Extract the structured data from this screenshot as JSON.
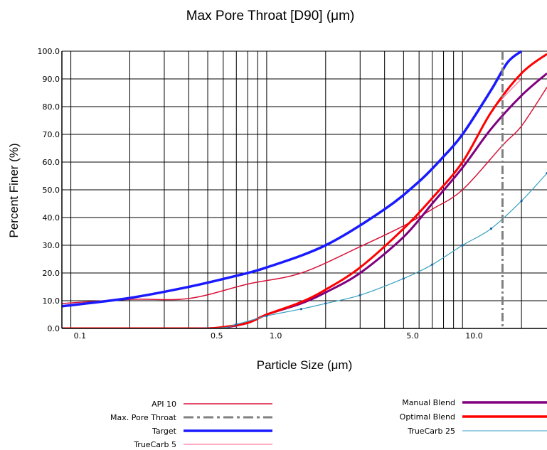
{
  "chart_data": {
    "type": "line",
    "title": "Max Pore Throat [D90] (μm)",
    "xlabel": "Particle Size (μm)",
    "ylabel": "Percent Finer (%)",
    "xscale": "log",
    "xlim": [
      0.09,
      27
    ],
    "ylim": [
      0,
      100
    ],
    "grid": true,
    "x_tick_labels": [
      {
        "value": 0.1,
        "label": "0.1"
      },
      {
        "value": 0.5,
        "label": "0.5"
      },
      {
        "value": 1.0,
        "label": "1.0"
      },
      {
        "value": 5.0,
        "label": "5.0"
      },
      {
        "value": 10.0,
        "label": "10.0"
      }
    ],
    "y_tick_labels": [
      "0.0",
      "10.0",
      "20.0",
      "30.0",
      "40.0",
      "50.0",
      "60.0",
      "70.0",
      "80.0",
      "90.0",
      "100.0"
    ],
    "x_gridlines": [
      0.1,
      0.2,
      0.3,
      0.4,
      0.5,
      0.6,
      0.7,
      0.8,
      0.9,
      1,
      2,
      3,
      4,
      5,
      6,
      7,
      8,
      9,
      10,
      20
    ],
    "reference_line": {
      "name": "Max. Pore Throat",
      "x": 16,
      "color": "#808080",
      "style": "dash-dot"
    },
    "legend_position": "bottom",
    "series": [
      {
        "name": "API 10",
        "color": "#d8143a",
        "width": 1.5,
        "dotted": false,
        "x": [
          0.09,
          0.2,
          0.4,
          0.8,
          1.5,
          3,
          5,
          7,
          10,
          16,
          20,
          27
        ],
        "y": [
          9,
          10.5,
          10.8,
          16,
          20,
          29.5,
          37,
          43,
          50,
          66,
          73,
          87
        ]
      },
      {
        "name": "Target",
        "color": "#1a1aff",
        "width": 3.5,
        "dotted": false,
        "x": [
          0.09,
          0.2,
          0.4,
          0.7,
          1,
          2,
          4,
          6,
          8,
          10,
          14,
          17,
          20
        ],
        "y": [
          8,
          11,
          15,
          19,
          22,
          30,
          43,
          53,
          62,
          70,
          86,
          96,
          100
        ]
      },
      {
        "name": "TrueCarb 5",
        "color": "#ff5c8a",
        "width": 1,
        "dotted": false,
        "x": [
          0.09,
          0.4,
          0.5,
          0.6,
          0.8,
          1,
          1.5,
          2,
          3,
          5,
          7,
          10,
          14,
          20
        ],
        "y": [
          0,
          0,
          0,
          0.5,
          2,
          5,
          9.5,
          14,
          22,
          36,
          47,
          60,
          78,
          90
        ]
      },
      {
        "name": "Manual Blend",
        "color": "#800080",
        "width": 3,
        "dotted": false,
        "x": [
          0.09,
          0.4,
          0.5,
          0.6,
          0.8,
          1,
          1.5,
          2,
          3,
          5,
          7,
          10,
          14,
          20,
          27
        ],
        "y": [
          0,
          0,
          0,
          0.3,
          2,
          5,
          9,
          13,
          20,
          33,
          45,
          58,
          72,
          84,
          92
        ]
      },
      {
        "name": "Optimal Blend",
        "color": "#ff0000",
        "width": 3,
        "dotted": false,
        "x": [
          0.09,
          0.4,
          0.5,
          0.6,
          0.8,
          1,
          1.5,
          2,
          3,
          5,
          7,
          10,
          14,
          20,
          27
        ],
        "y": [
          0,
          0,
          0,
          0.5,
          2,
          5,
          9.5,
          14,
          22,
          36,
          47,
          60,
          78,
          92,
          99
        ]
      },
      {
        "name": "TrueCarb 25",
        "color": "#3aa0c0",
        "width": 1.2,
        "dotted": true,
        "x": [
          0.09,
          0.5,
          0.7,
          1,
          1.5,
          2,
          3,
          5,
          7,
          10,
          14,
          20,
          27
        ],
        "y": [
          0,
          0,
          1.5,
          4.5,
          7,
          9,
          12,
          18,
          23,
          30,
          36,
          46,
          56
        ]
      }
    ]
  },
  "legend": {
    "items": [
      {
        "label": "API 10",
        "color": "#d8143a",
        "style": "solid",
        "width": 1.5
      },
      {
        "label": "Max. Pore Throat",
        "color": "#808080",
        "style": "dashdot",
        "width": 3
      },
      {
        "label": "Target",
        "color": "#1a1aff",
        "style": "solid",
        "width": 3.5
      },
      {
        "label": "TrueCarb 5",
        "color": "#ff5c8a",
        "style": "solid",
        "width": 1
      },
      {
        "label": "Manual Blend",
        "color": "#800080",
        "style": "solid",
        "width": 3.5
      },
      {
        "label": "Optimal Blend",
        "color": "#ff0000",
        "style": "solid",
        "width": 3.5
      },
      {
        "label": "TrueCarb 25",
        "color": "#3aa0c0",
        "style": "solid",
        "width": 1
      }
    ]
  }
}
